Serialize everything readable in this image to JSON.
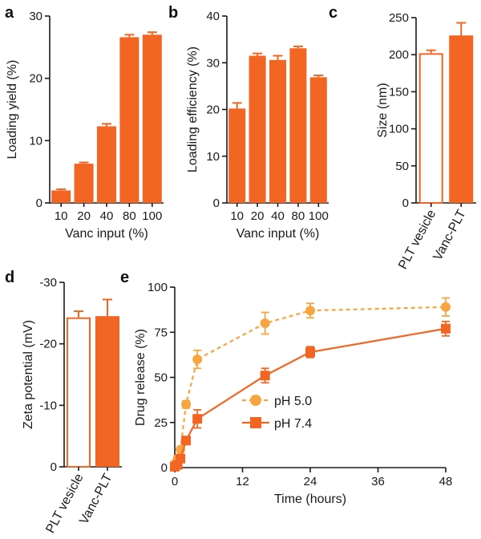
{
  "colors": {
    "bar": "#f26522",
    "acidic": "#f7a541",
    "neutral": "#f26522",
    "axis": "#1a1a1a"
  },
  "panels": {
    "a": {
      "label": "a"
    },
    "b": {
      "label": "b"
    },
    "c": {
      "label": "c"
    },
    "d": {
      "label": "d"
    },
    "e": {
      "label": "e"
    }
  },
  "chart_data": [
    {
      "id": "a",
      "type": "bar",
      "categories": [
        "10",
        "20",
        "40",
        "80",
        "100"
      ],
      "values": [
        2.0,
        6.3,
        12.3,
        26.6,
        27.0
      ],
      "errors": [
        0.2,
        0.2,
        0.4,
        0.4,
        0.4
      ],
      "xlabel": "Vanc input (%)",
      "ylabel": "Loading yield (%)",
      "ylim": [
        0,
        30
      ],
      "yticks": [
        "0",
        "10",
        "20",
        "30"
      ],
      "yticks_values": [
        0,
        10,
        20,
        30
      ]
    },
    {
      "id": "b",
      "type": "bar",
      "categories": [
        "10",
        "20",
        "40",
        "80",
        "100"
      ],
      "values": [
        20.2,
        31.5,
        30.6,
        33.1,
        26.9
      ],
      "errors": [
        1.2,
        0.5,
        0.9,
        0.4,
        0.4
      ],
      "xlabel": "Vanc input (%)",
      "ylabel": "Loading efficiency (%)",
      "ylim": [
        0,
        40
      ],
      "yticks": [
        "0",
        "10",
        "20",
        "30",
        "40"
      ],
      "yticks_values": [
        0,
        10,
        20,
        30,
        40
      ]
    },
    {
      "id": "c",
      "type": "bar",
      "categories": [
        "PLT vesicle",
        "Vanc-PLT"
      ],
      "values": [
        202,
        226
      ],
      "errors": [
        4,
        17
      ],
      "filled": [
        false,
        true
      ],
      "ylabel": "Size (nm)",
      "ylim": [
        0,
        250
      ],
      "yticks": [
        "0",
        "50",
        "100",
        "150",
        "200",
        "250"
      ],
      "yticks_values": [
        0,
        50,
        100,
        150,
        200,
        250
      ]
    },
    {
      "id": "d",
      "type": "bar",
      "categories": [
        "PLT vesicle",
        "Vanc-PLT"
      ],
      "values": [
        -24.3,
        -24.5
      ],
      "errors": [
        1.0,
        2.7
      ],
      "filled": [
        false,
        true
      ],
      "ylabel": "Zeta potential (mV)",
      "ylim": [
        0,
        -30
      ],
      "yticks": [
        "0",
        "-10",
        "-20",
        "-30"
      ],
      "yticks_values": [
        0,
        -10,
        -20,
        -30
      ]
    },
    {
      "id": "e",
      "type": "line",
      "xlabel": "Time (hours)",
      "ylabel": "Drug release (%)",
      "xlim": [
        0,
        48
      ],
      "ylim": [
        0,
        100
      ],
      "xticks": [
        "0",
        "12",
        "24",
        "36",
        "48"
      ],
      "xticks_values": [
        0,
        12,
        24,
        36,
        48
      ],
      "yticks": [
        "0",
        "25",
        "50",
        "75",
        "100"
      ],
      "yticks_values": [
        0,
        25,
        50,
        75,
        100
      ],
      "series": [
        {
          "name": "pH 5.0",
          "marker": "circle",
          "dashed": true,
          "x": [
            0,
            0.5,
            1,
            2,
            4,
            16,
            24,
            48
          ],
          "y": [
            2,
            5,
            10,
            35,
            60,
            80,
            87,
            89
          ],
          "errors": [
            1,
            1,
            1,
            2,
            5,
            6,
            4,
            5
          ]
        },
        {
          "name": "pH 7.4",
          "marker": "square",
          "dashed": false,
          "x": [
            0,
            0.5,
            1,
            2,
            4,
            16,
            24,
            48
          ],
          "y": [
            0.5,
            1.5,
            5,
            15,
            27,
            51,
            64,
            77
          ],
          "errors": [
            1,
            1,
            1,
            2,
            5,
            4,
            3,
            4
          ]
        }
      ]
    }
  ]
}
